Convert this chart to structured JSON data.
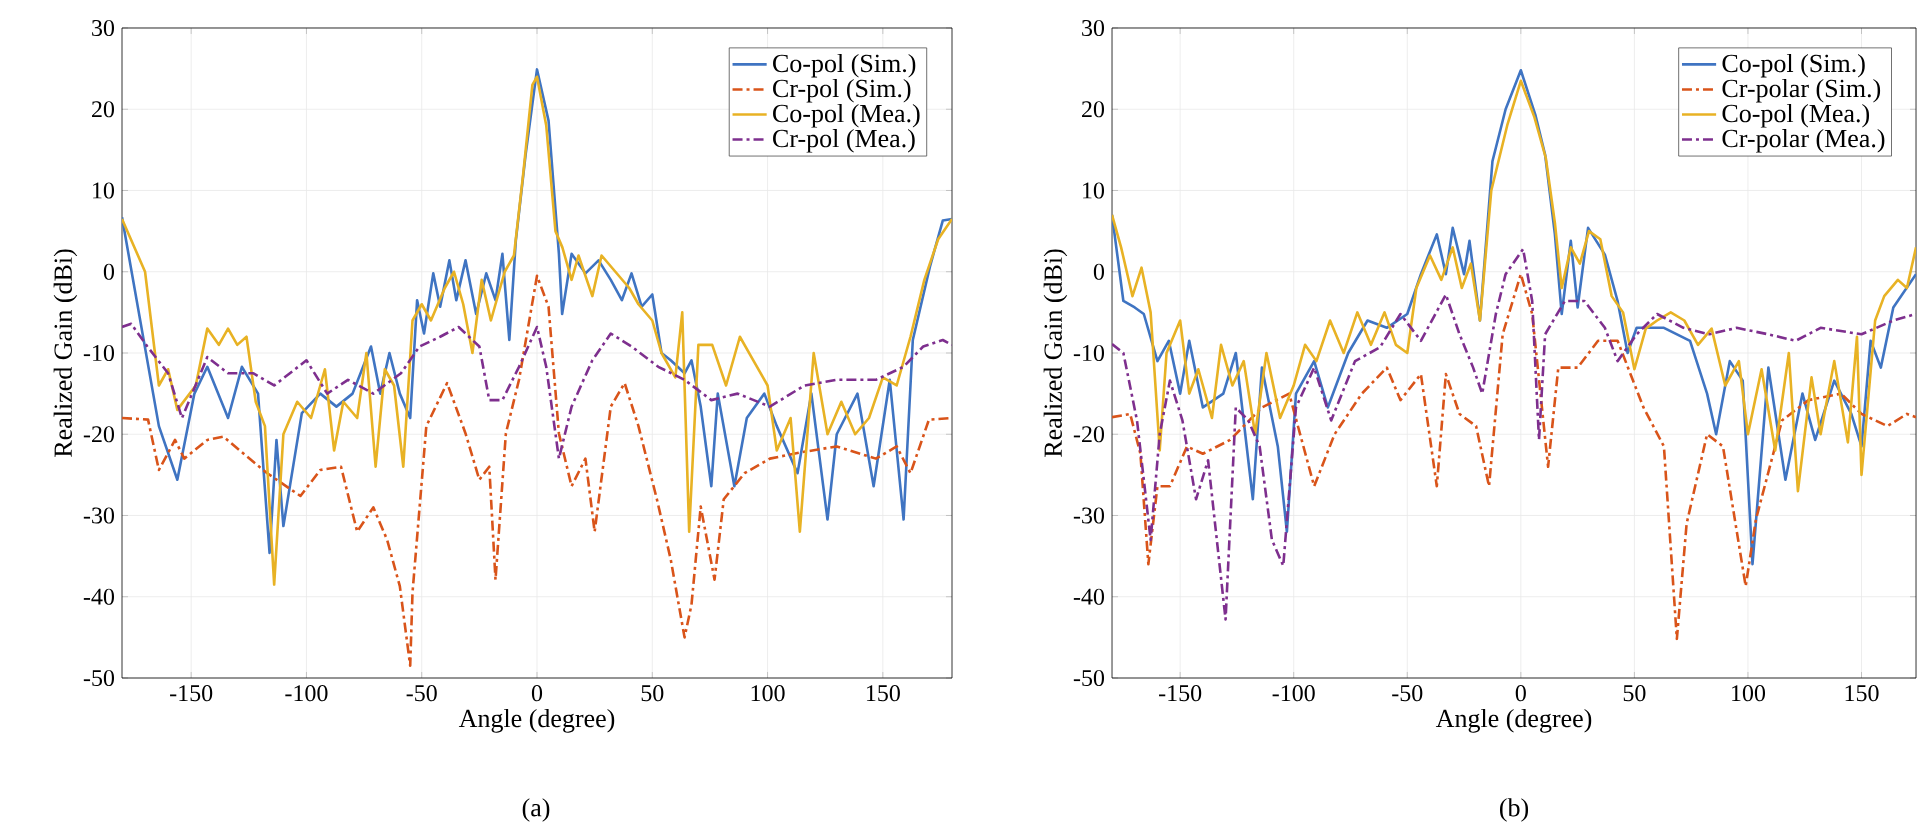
{
  "chart_data": [
    {
      "type": "line",
      "xlabel": "Angle (degree)",
      "ylabel": "Realized Gain (dBi)",
      "annotations": [
        "(a)"
      ],
      "xlim": [
        -180,
        180
      ],
      "ylim": [
        -50,
        30
      ],
      "xticks": [
        -150,
        -100,
        -50,
        0,
        50,
        100,
        150
      ],
      "yticks": [
        -50,
        -40,
        -30,
        -20,
        -10,
        0,
        10,
        20,
        30
      ],
      "grid": true,
      "legend": "top right",
      "marker": "none",
      "series": [
        {
          "name": "Co-pol (Sim.)",
          "color": "#3f74c2",
          "line_style": "solid",
          "x": [
            -180,
            -164,
            -156,
            -148.6,
            -143,
            -134,
            -128,
            -121,
            -116,
            -113,
            -110,
            -102,
            -94,
            -87,
            -80,
            -72,
            -68,
            -64,
            -59.5,
            -55,
            -52,
            -49,
            -45,
            -42,
            -38,
            -35,
            -31,
            -26.4,
            -22,
            -18,
            -15,
            -12,
            -9.2,
            -4.9,
            0,
            5,
            9.5,
            10.9,
            15,
            21,
            26.7,
            32,
            36.8,
            41,
            45.4,
            50,
            54,
            58,
            64,
            67,
            71,
            75.6,
            78.4,
            85.6,
            91,
            98.6,
            104,
            113,
            119,
            126,
            130,
            139,
            146,
            153,
            159,
            163,
            170.4,
            176,
            180
          ],
          "values": [
            6.7,
            -19,
            -25.6,
            -15,
            -11.7,
            -18,
            -11.7,
            -15,
            -34.6,
            -20.7,
            -31.3,
            -17.4,
            -15,
            -16.6,
            -15,
            -9.2,
            -15,
            -10,
            -15,
            -18,
            -3.5,
            -7.6,
            -0.2,
            -4.3,
            1.4,
            -3.5,
            1.4,
            -5.2,
            -0.2,
            -3.5,
            2.2,
            -8.4,
            3.8,
            14.5,
            24.9,
            18.6,
            2.2,
            -5.2,
            2.2,
            -0.2,
            1.4,
            -1,
            -3.5,
            -0.2,
            -4.3,
            -2.8,
            -10,
            -10.9,
            -12.5,
            -10.9,
            -16.6,
            -26.4,
            -15,
            -26.4,
            -18,
            -15,
            -19,
            -24.8,
            -15,
            -30.5,
            -20,
            -15,
            -26.4,
            -13.3,
            -30.5,
            -8.4,
            0.6,
            6.3,
            6.5
          ]
        },
        {
          "name": "Cr-pol (Sim.)",
          "color": "#d9541a",
          "line_style": "dashed",
          "x": [
            -180,
            -168.7,
            -164,
            -157,
            -153,
            -143,
            -136,
            -126,
            -117,
            -102.6,
            -94,
            -85,
            -78,
            -71,
            -65,
            -59.5,
            -55,
            -54,
            -48,
            -39,
            -31,
            -25,
            -20.7,
            -18,
            -13.5,
            -7.8,
            0,
            5,
            9.5,
            15,
            21,
            25,
            32,
            38,
            44,
            52,
            58,
            64,
            67,
            71,
            77,
            81,
            90,
            101,
            113,
            130,
            147,
            156,
            162,
            170,
            180
          ],
          "values": [
            -18,
            -18.2,
            -24.4,
            -20.7,
            -23,
            -20.7,
            -20.3,
            -22.7,
            -24.8,
            -27.6,
            -24.4,
            -24,
            -32,
            -29,
            -33,
            -38.7,
            -48.5,
            -39.5,
            -19,
            -13.7,
            -19.9,
            -25.6,
            -24,
            -37.9,
            -19.9,
            -13.3,
            -0.5,
            -4.3,
            -19.9,
            -26.4,
            -23,
            -32,
            -16.6,
            -13.7,
            -19,
            -28,
            -35.4,
            -45,
            -41,
            -28.9,
            -37.9,
            -28,
            -24.8,
            -23,
            -22.3,
            -21.5,
            -23,
            -21.5,
            -24.8,
            -18.2,
            -18
          ]
        },
        {
          "name": "Co-pol (Mea.)",
          "color": "#e8b224",
          "line_style": "solid",
          "x": [
            -180,
            -170,
            -164,
            -160,
            -156,
            -148,
            -143,
            -138,
            -134,
            -130,
            -126,
            -122,
            -118,
            -114,
            -110,
            -104,
            -98,
            -92,
            -88,
            -84,
            -78,
            -74,
            -70,
            -66,
            -62,
            -58,
            -54,
            -50,
            -46,
            -40,
            -36,
            -32,
            -28,
            -24,
            -20,
            -14,
            -10,
            -6,
            -2,
            0,
            4,
            8,
            11,
            15,
            18,
            24,
            28,
            34,
            40,
            44,
            50,
            54,
            60,
            63,
            66,
            70,
            76,
            82,
            88,
            94,
            100,
            104,
            110,
            114,
            120,
            126,
            132,
            138,
            144,
            150,
            156,
            162,
            168,
            174,
            180
          ],
          "values": [
            6.5,
            0,
            -14,
            -12,
            -17,
            -14,
            -7,
            -9,
            -7,
            -9,
            -8,
            -16,
            -19,
            -38.5,
            -20,
            -16,
            -18,
            -12,
            -22,
            -16,
            -18,
            -10,
            -24,
            -12,
            -14,
            -24,
            -6,
            -4,
            -6,
            -2,
            0,
            -4,
            -10,
            -1,
            -6,
            0,
            2,
            12,
            23,
            24,
            18,
            5,
            3,
            -1,
            2,
            -3,
            2,
            0,
            -2,
            -4,
            -6,
            -10,
            -13,
            -5,
            -32,
            -9,
            -9,
            -14,
            -8,
            -11,
            -14,
            -22,
            -18,
            -32,
            -10,
            -20,
            -16,
            -20,
            -18,
            -13,
            -14,
            -8,
            -1,
            4,
            6.5
          ]
        },
        {
          "name": "Cr-pol (Mea.)",
          "color": "#7e2f8e",
          "line_style": "dashed",
          "x": [
            -180,
            -176,
            -169,
            -160,
            -154,
            -143,
            -134,
            -123,
            -114,
            -100,
            -91,
            -82,
            -71,
            -59,
            -51,
            -42,
            -34,
            -25,
            -20.7,
            -15,
            -7.8,
            0,
            4,
            9.5,
            15,
            24,
            32,
            41,
            52.6,
            64,
            75.6,
            87,
            101,
            116,
            130,
            147,
            159,
            167.5,
            176,
            180
          ],
          "values": [
            -6.8,
            -6.4,
            -9.2,
            -12.5,
            -18,
            -10.5,
            -12.5,
            -12.5,
            -14,
            -10.9,
            -15,
            -13.3,
            -15,
            -12.5,
            -9.2,
            -8,
            -6.8,
            -9.2,
            -15.8,
            -15.8,
            -11.7,
            -6.8,
            -11.7,
            -23,
            -16.6,
            -10.9,
            -7.6,
            -9.2,
            -11.7,
            -13.3,
            -15.8,
            -15,
            -16.6,
            -14,
            -13.3,
            -13.3,
            -11.7,
            -9.2,
            -8.4,
            -9
          ]
        }
      ]
    },
    {
      "type": "line",
      "xlabel": "Angle (degree)",
      "ylabel": "Realized Gain (dBi)",
      "annotations": [
        "(b)"
      ],
      "xlim": [
        -180,
        174
      ],
      "ylim": [
        -50,
        30
      ],
      "xticks": [
        -150,
        -100,
        -50,
        0,
        50,
        100,
        150
      ],
      "yticks": [
        -50,
        -40,
        -30,
        -20,
        -10,
        0,
        10,
        20,
        30
      ],
      "grid": true,
      "legend": "top right",
      "marker": "none",
      "series": [
        {
          "name": "Co-pol (Sim.)",
          "color": "#3f74c2",
          "line_style": "solid",
          "x": [
            -180,
            -175,
            -170,
            -166,
            -160,
            -155,
            -150,
            -146,
            -140,
            -131,
            -125.5,
            -118,
            -114,
            -107,
            -103,
            -99,
            -91,
            -85,
            -76,
            -67.5,
            -59,
            -50,
            -44,
            -37,
            -33,
            -30,
            -25,
            -22.6,
            -18,
            -12.5,
            -6.7,
            0,
            6.4,
            10.7,
            15,
            18,
            22,
            25,
            29.6,
            37,
            42.6,
            47,
            51,
            63,
            74.5,
            82,
            86,
            92,
            97.7,
            102,
            109,
            116.5,
            124,
            129.6,
            138,
            145.5,
            150,
            154,
            158.5,
            164,
            174
          ],
          "values": [
            7,
            -3.6,
            -4.4,
            -5.2,
            -11,
            -8.5,
            -15,
            -8.5,
            -16.7,
            -15,
            -10,
            -28,
            -11.8,
            -21.5,
            -32,
            -15,
            -11,
            -16.7,
            -10,
            -6,
            -6.9,
            -5.2,
            -0.3,
            4.6,
            -0.3,
            5.4,
            -0.3,
            3.8,
            -6,
            13.6,
            20,
            24.8,
            19.3,
            14.4,
            4.6,
            -5.2,
            3.8,
            -4.4,
            5.4,
            2.1,
            -3.6,
            -10,
            -6.9,
            -6.9,
            -8.5,
            -15,
            -20,
            -11,
            -13.4,
            -36,
            -11.8,
            -25.6,
            -15,
            -20.7,
            -13.4,
            -17.5,
            -21.5,
            -8.5,
            -11.8,
            -4.4,
            -0.3
          ]
        },
        {
          "name": "Cr-polar (Sim.)",
          "color": "#d9541a",
          "line_style": "dashed",
          "x": [
            -180,
            -172,
            -167.5,
            -164,
            -160,
            -154.5,
            -147,
            -140,
            -128,
            -114,
            -102,
            -91,
            -82,
            -70,
            -59,
            -53,
            -44,
            -37,
            -33,
            -27,
            -19.7,
            -14,
            -8,
            0,
            5,
            12,
            16.5,
            25,
            34,
            42.6,
            54,
            63,
            68.7,
            73,
            82,
            89,
            99,
            103.5,
            115,
            126.7,
            141,
            150,
            161.4,
            170,
            174
          ],
          "values": [
            -17.9,
            -17.5,
            -22.4,
            -36,
            -26.4,
            -26.4,
            -21.5,
            -22.4,
            -20.7,
            -16.7,
            -15,
            -26.4,
            -20,
            -15,
            -11.8,
            -15.8,
            -12.6,
            -26.4,
            -12.6,
            -17.5,
            -19,
            -26.4,
            -7.7,
            -0.3,
            -5.2,
            -24,
            -11.8,
            -11.8,
            -8.5,
            -8.5,
            -16.7,
            -21.5,
            -45.2,
            -31,
            -20,
            -21.5,
            -38.7,
            -30.5,
            -18.3,
            -15.8,
            -15,
            -17.5,
            -19,
            -17.5,
            -17.9
          ]
        },
        {
          "name": "Co-pol (Mea.)",
          "color": "#e8b224",
          "line_style": "solid",
          "x": [
            -180,
            -176,
            -171,
            -167,
            -163,
            -159,
            -156,
            -150,
            -146,
            -142,
            -136,
            -132,
            -127,
            -122,
            -117,
            -112,
            -106,
            -100,
            -95,
            -90,
            -84,
            -78,
            -72,
            -66,
            -60,
            -55,
            -50,
            -46,
            -40,
            -35,
            -30,
            -26,
            -22,
            -18,
            -13,
            -6,
            0,
            6,
            11,
            15,
            18,
            22,
            26,
            30,
            35,
            40,
            45,
            50,
            55,
            60,
            66,
            72,
            78,
            84,
            90,
            96,
            100,
            106,
            112,
            118,
            122,
            128,
            132,
            138,
            144,
            148,
            150,
            156,
            160,
            166,
            170,
            174
          ],
          "values": [
            7,
            3,
            -3,
            0.5,
            -5,
            -22,
            -10,
            -6,
            -15,
            -12,
            -18,
            -9,
            -14,
            -11,
            -20,
            -10,
            -18,
            -14,
            -9,
            -11,
            -6,
            -10,
            -5,
            -9,
            -5,
            -9,
            -10,
            -2,
            2,
            -1,
            3,
            -2,
            1,
            -6,
            10,
            18,
            23.5,
            19,
            14,
            6,
            -2,
            3,
            1,
            5,
            4,
            -3,
            -5,
            -12,
            -7,
            -6,
            -5,
            -6,
            -9,
            -7,
            -14,
            -11,
            -20,
            -12,
            -22,
            -10,
            -27,
            -13,
            -20,
            -11,
            -21,
            -8,
            -25,
            -6,
            -3,
            -1,
            -2,
            3
          ]
        },
        {
          "name": "Cr-polar (Mea.)",
          "color": "#7e2f8e",
          "line_style": "dashed",
          "x": [
            -180,
            -175,
            -169,
            -166,
            -163,
            -159,
            -154.5,
            -149,
            -143,
            -137.7,
            -130,
            -125.5,
            -120,
            -115,
            -109.6,
            -104.6,
            -99,
            -91,
            -83.5,
            -73,
            -62,
            -53,
            -44,
            -33,
            -27,
            -21,
            -17,
            -11,
            -6.7,
            1,
            5,
            8,
            10.7,
            19.4,
            28,
            37,
            42.6,
            51,
            60,
            71.6,
            83,
            95,
            109,
            121,
            132,
            150,
            164,
            174
          ],
          "values": [
            -8.9,
            -10,
            -18.3,
            -25.6,
            -33,
            -20,
            -13.4,
            -18.3,
            -28,
            -23.2,
            -42.8,
            -16.7,
            -18.3,
            -21.5,
            -33,
            -36.2,
            -16.7,
            -11.8,
            -18.3,
            -11,
            -9.3,
            -5.2,
            -8.5,
            -2.8,
            -7.7,
            -11.8,
            -15,
            -5.2,
            -0.3,
            2.8,
            -3.6,
            -20.7,
            -7.7,
            -3.6,
            -3.6,
            -6.9,
            -11,
            -7.7,
            -5.2,
            -6.9,
            -7.7,
            -6.9,
            -7.7,
            -8.5,
            -6.9,
            -7.7,
            -6,
            -5.2
          ]
        }
      ]
    }
  ]
}
